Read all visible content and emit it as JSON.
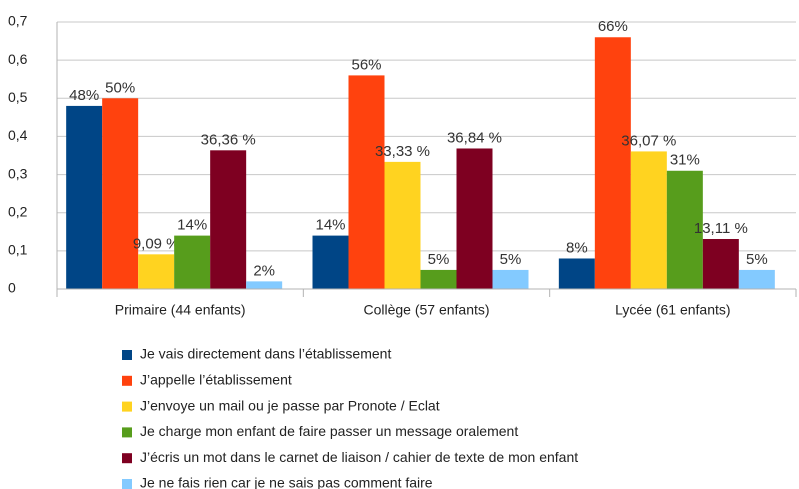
{
  "chart_data": {
    "type": "bar",
    "categories": [
      "Primaire (44 enfants)",
      "Collège (57 enfants)",
      "Lycée (61 enfants)"
    ],
    "series": [
      {
        "name": "Je vais directement dans l’établissement",
        "color": "#004586",
        "values": [
          0.48,
          0.14,
          0.08
        ],
        "value_labels": [
          "48%",
          "14%",
          "8%"
        ]
      },
      {
        "name": "J’appelle l’établissement",
        "color": "#ff420e",
        "values": [
          0.5,
          0.56,
          0.66
        ],
        "value_labels": [
          "50%",
          "56%",
          "66%"
        ]
      },
      {
        "name": "J’envoye un mail ou je passe par Pronote / Eclat",
        "color": "#ffd320",
        "values": [
          0.0909,
          0.3333,
          0.3607
        ],
        "value_labels": [
          "9,09 %",
          "33,33 %",
          "36,07 %"
        ]
      },
      {
        "name": "Je charge mon enfant de faire passer un message oralement",
        "color": "#579d1c",
        "values": [
          0.14,
          0.05,
          0.31
        ],
        "value_labels": [
          "14%",
          "5%",
          "31%"
        ]
      },
      {
        "name": "J’écris un mot dans le carnet de liaison / cahier de texte de mon enfant",
        "color": "#7e0021",
        "values": [
          0.3636,
          0.3684,
          0.1311
        ],
        "value_labels": [
          "36,36 %",
          "36,84 %",
          "13,11 %"
        ]
      },
      {
        "name": "Je ne fais rien car je ne sais pas comment faire",
        "color": "#83caff",
        "values": [
          0.02,
          0.05,
          0.05
        ],
        "value_labels": [
          "2%",
          "5%",
          "5%"
        ]
      }
    ],
    "ylim": [
      0,
      0.7
    ],
    "yticks": [
      0,
      {
        "value": 0.1,
        "label": "0,1"
      },
      {
        "value": 0.2,
        "label": "0,2"
      },
      {
        "value": 0.3,
        "label": "0,3"
      },
      {
        "value": 0.4,
        "label": "0,4"
      },
      {
        "value": 0.5,
        "label": "0,5"
      },
      {
        "value": 0.6,
        "label": "0,6"
      },
      {
        "value": 0.7,
        "label": "0,7"
      }
    ],
    "grid": true,
    "legend": "bottom"
  }
}
